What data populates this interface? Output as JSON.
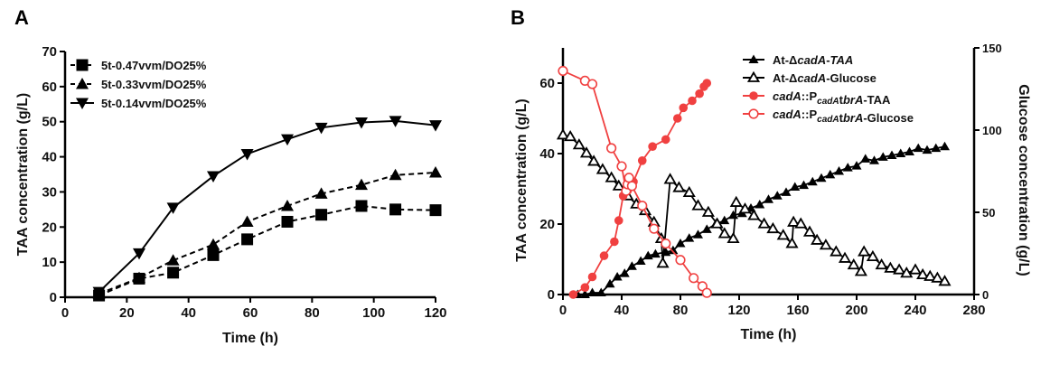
{
  "chart_data": [
    {
      "panel": "A",
      "type": "line",
      "title": "",
      "xlabel": "Time (h)",
      "ylabel": "TAA concentration (g/L)",
      "xlim": [
        0,
        120
      ],
      "ylim": [
        0,
        70
      ],
      "xticks": [
        0,
        20,
        40,
        60,
        80,
        100,
        120
      ],
      "yticks": [
        0,
        10,
        20,
        30,
        40,
        50,
        60,
        70
      ],
      "grid": false,
      "legend_position": "top-left",
      "series": [
        {
          "name": "5t-0.47vvm/DO25%",
          "marker": "square",
          "line": "dashed",
          "color": "#000000",
          "x": [
            11,
            24,
            35,
            48,
            59,
            72,
            83,
            96,
            107,
            120
          ],
          "y": [
            0.5,
            5.3,
            7,
            12,
            16.5,
            21.5,
            23.5,
            26,
            25,
            24.8
          ]
        },
        {
          "name": "5t-0.33vvm/DO25%",
          "marker": "triangle-up",
          "line": "dashed",
          "color": "#000000",
          "x": [
            11,
            24,
            35,
            48,
            59,
            72,
            83,
            96,
            107,
            120
          ],
          "y": [
            1,
            5.5,
            10.5,
            15,
            21.5,
            26,
            29.5,
            32,
            34.8,
            35.5
          ]
        },
        {
          "name": "5t-0.14vvm/DO25%",
          "marker": "triangle-down",
          "line": "solid",
          "color": "#000000",
          "x": [
            11,
            24,
            35,
            48,
            59,
            72,
            83,
            96,
            107,
            120
          ],
          "y": [
            1.5,
            12.5,
            25.5,
            34.5,
            40.8,
            45,
            48.3,
            49.8,
            50.2,
            49
          ]
        }
      ]
    },
    {
      "panel": "B",
      "type": "line",
      "title": "",
      "xlabel": "Time (h)",
      "ylabel": "TAA concentration (g/L)",
      "y2label": "Glucose concentration (g/L)",
      "xlim": [
        0,
        280
      ],
      "ylim": [
        0,
        70
      ],
      "y2lim": [
        0,
        150
      ],
      "xticks": [
        0,
        40,
        80,
        120,
        160,
        200,
        240,
        280
      ],
      "yticks": [
        0,
        20,
        40,
        60
      ],
      "y2ticks": [
        0,
        50,
        100,
        150
      ],
      "grid": false,
      "legend_position": "top-right",
      "series": [
        {
          "name": "At-ΔcadA-TAA",
          "legend_parts": [
            [
              "At-Δ",
              "n"
            ],
            [
              "cadA",
              "i"
            ],
            [
              "-",
              "n"
            ],
            [
              "TAA",
              "i"
            ]
          ],
          "marker": "triangle-up-filled",
          "axis": "left",
          "color": "#000000",
          "x": [
            10,
            15,
            20,
            26,
            32,
            37,
            42,
            47,
            53,
            58,
            63,
            70,
            75,
            80,
            86,
            92,
            98,
            104,
            110,
            116,
            122,
            128,
            134,
            140,
            146,
            152,
            158,
            164,
            170,
            176,
            182,
            188,
            194,
            200,
            206,
            212,
            218,
            224,
            230,
            236,
            242,
            248,
            254,
            260
          ],
          "y": [
            0,
            0,
            0.5,
            0.5,
            3,
            5,
            6,
            8,
            9.5,
            11,
            11.5,
            12,
            12.5,
            14.5,
            16,
            17,
            18.5,
            20,
            21,
            22.5,
            23,
            24.5,
            25.5,
            27,
            28,
            29,
            30.5,
            31,
            32,
            33,
            34,
            35,
            36,
            36.5,
            38.5,
            38,
            39,
            39.5,
            40,
            40.5,
            41.5,
            41,
            41.5,
            42
          ]
        },
        {
          "name": "At-ΔcadA-Glucose",
          "legend_parts": [
            [
              "At-Δ",
              "n"
            ],
            [
              "cadA",
              "i"
            ],
            [
              "-Glucose",
              "n"
            ]
          ],
          "marker": "triangle-up-open",
          "axis": "right",
          "color": "#000000",
          "x": [
            0,
            5,
            11,
            16,
            21,
            27,
            33,
            38,
            44,
            50,
            56,
            62,
            67,
            68,
            73,
            79,
            86,
            92,
            99,
            105,
            110,
            116,
            118,
            124,
            130,
            137,
            143,
            150,
            156,
            157,
            162,
            168,
            173,
            179,
            186,
            192,
            198,
            203,
            205,
            211,
            217,
            223,
            229,
            234,
            240,
            245,
            250,
            255,
            260
          ],
          "y": [
            97,
            96,
            91,
            86,
            81,
            76,
            71,
            66,
            60,
            55,
            51,
            44,
            34,
            19,
            70,
            65,
            62,
            54,
            50,
            43,
            37,
            34,
            56,
            52,
            48,
            43,
            40,
            36,
            31,
            44,
            43,
            38,
            33,
            30,
            26,
            22,
            18,
            14,
            26,
            23,
            18,
            16,
            15,
            13,
            15,
            12,
            11,
            10,
            8
          ]
        },
        {
          "name": "cadA::PcadAtbrA-TAA",
          "legend_parts": [
            [
              "cadA",
              "i"
            ],
            [
              "::P",
              "n"
            ],
            [
              "cadA",
              "si"
            ],
            [
              "t",
              "n"
            ],
            [
              "brA",
              "i"
            ],
            [
              "-TAA",
              "n"
            ]
          ],
          "marker": "circle-filled",
          "axis": "left",
          "color": "#f04040",
          "x": [
            7,
            15,
            20,
            28,
            35,
            38,
            41,
            44,
            48,
            54,
            61,
            70,
            78,
            82,
            88,
            93,
            96,
            98
          ],
          "y": [
            0,
            2,
            5,
            11,
            15,
            21,
            28,
            29.5,
            32,
            38,
            42,
            44,
            50,
            53,
            55,
            57,
            59,
            60
          ]
        },
        {
          "name": "cadA::PcadAtbrA-Glucose",
          "legend_parts": [
            [
              "cadA",
              "i"
            ],
            [
              "::P",
              "n"
            ],
            [
              "cadA",
              "si"
            ],
            [
              "t",
              "n"
            ],
            [
              "brA",
              "i"
            ],
            [
              "-Glucose",
              "n"
            ]
          ],
          "marker": "circle-open",
          "axis": "right",
          "color": "#f04040",
          "x": [
            0,
            15,
            20,
            33,
            40,
            43,
            44,
            45,
            47,
            54,
            62,
            70,
            80,
            89,
            95,
            98
          ],
          "y": [
            136,
            130,
            128,
            89,
            78,
            63,
            67,
            71,
            66,
            54,
            40,
            31,
            21,
            10,
            5,
            1
          ]
        }
      ]
    }
  ],
  "labels": {
    "panel_a": "A",
    "panel_b": "B"
  }
}
